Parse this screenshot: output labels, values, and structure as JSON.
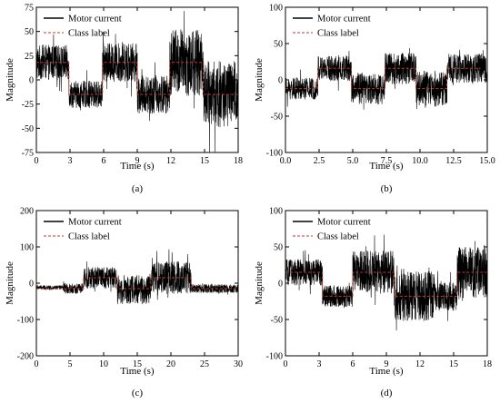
{
  "chart_data": [
    {
      "type": "line",
      "panel_label": "(a)",
      "xlabel": "Time (s)",
      "ylabel": "Magnitude",
      "xlim": [
        0,
        18
      ],
      "ylim": [
        -75,
        75
      ],
      "xticks": [
        0,
        3,
        6,
        9,
        12,
        15,
        18
      ],
      "yticks": [
        -75,
        -50,
        -25,
        0,
        25,
        50,
        75
      ],
      "legend_placement": "top-left",
      "series": [
        {
          "name": "Motor current",
          "color": "#000000",
          "segments": [
            {
              "x_start": 0,
              "x_end": 2.9,
              "mean": 18,
              "amp": 18
            },
            {
              "x_start": 2.9,
              "x_end": 5.9,
              "mean": -15,
              "amp": 14
            },
            {
              "x_start": 5.9,
              "x_end": 9.0,
              "mean": 18,
              "amp": 20
            },
            {
              "x_start": 9.0,
              "x_end": 11.9,
              "mean": -15,
              "amp": 20
            },
            {
              "x_start": 11.9,
              "x_end": 14.9,
              "mean": 18,
              "amp": 35
            },
            {
              "x_start": 14.9,
              "x_end": 18,
              "mean": -15,
              "amp": 35
            }
          ]
        },
        {
          "name": "Class label",
          "color": "#c0392b",
          "steps": [
            {
              "x_start": 0,
              "x_end": 2.9,
              "y": 18
            },
            {
              "x_start": 2.9,
              "x_end": 5.9,
              "y": -15
            },
            {
              "x_start": 5.9,
              "x_end": 9.0,
              "y": 18
            },
            {
              "x_start": 9.0,
              "x_end": 11.9,
              "y": -15
            },
            {
              "x_start": 11.9,
              "x_end": 14.9,
              "y": 18
            },
            {
              "x_start": 14.9,
              "x_end": 18,
              "y": -15
            }
          ]
        }
      ]
    },
    {
      "type": "line",
      "panel_label": "(b)",
      "xlabel": "Time (s)",
      "ylabel": "Magnitude",
      "xlim": [
        0,
        15
      ],
      "ylim": [
        -100,
        100
      ],
      "xticks": [
        0.0,
        2.5,
        5.0,
        7.5,
        10.0,
        12.5,
        15.0
      ],
      "yticks": [
        -100,
        -50,
        0,
        50,
        100
      ],
      "legend_placement": "top-left",
      "series": [
        {
          "name": "Motor current",
          "color": "#000000",
          "segments": [
            {
              "x_start": 0,
              "x_end": 2.4,
              "mean": -12,
              "amp": 15
            },
            {
              "x_start": 2.4,
              "x_end": 4.9,
              "mean": 16,
              "amp": 18
            },
            {
              "x_start": 4.9,
              "x_end": 7.4,
              "mean": -12,
              "amp": 22
            },
            {
              "x_start": 7.4,
              "x_end": 9.7,
              "mean": 16,
              "amp": 22
            },
            {
              "x_start": 9.7,
              "x_end": 12.0,
              "mean": -12,
              "amp": 25
            },
            {
              "x_start": 12.0,
              "x_end": 14.5,
              "mean": 16,
              "amp": 20
            }
          ]
        },
        {
          "name": "Class label",
          "color": "#c0392b",
          "steps": [
            {
              "x_start": 0,
              "x_end": 2.4,
              "y": -12
            },
            {
              "x_start": 2.4,
              "x_end": 4.9,
              "y": 16
            },
            {
              "x_start": 4.9,
              "x_end": 7.4,
              "y": -12
            },
            {
              "x_start": 7.4,
              "x_end": 9.7,
              "y": 16
            },
            {
              "x_start": 9.7,
              "x_end": 12.0,
              "y": -12
            },
            {
              "x_start": 12.0,
              "x_end": 14.5,
              "y": 16
            }
          ]
        }
      ]
    },
    {
      "type": "line",
      "panel_label": "(c)",
      "xlabel": "Time (s)",
      "ylabel": "Magnitude",
      "xlim": [
        0,
        30
      ],
      "ylim": [
        -200,
        200
      ],
      "xticks": [
        0,
        5,
        10,
        15,
        20,
        25,
        30
      ],
      "yticks": [
        -200,
        -100,
        0,
        100,
        200
      ],
      "legend_placement": "top-left",
      "series": [
        {
          "name": "Motor current",
          "color": "#000000",
          "segments": [
            {
              "x_start": 0,
              "x_end": 4.0,
              "mean": -12,
              "amp": 6
            },
            {
              "x_start": 4.0,
              "x_end": 7.0,
              "mean": -15,
              "amp": 14
            },
            {
              "x_start": 7.0,
              "x_end": 12.0,
              "mean": 15,
              "amp": 30
            },
            {
              "x_start": 12.0,
              "x_end": 17.0,
              "mean": -18,
              "amp": 40
            },
            {
              "x_start": 17.0,
              "x_end": 23.0,
              "mean": 15,
              "amp": 45
            },
            {
              "x_start": 23.0,
              "x_end": 30,
              "mean": -15,
              "amp": 12
            }
          ]
        },
        {
          "name": "Class label",
          "color": "#c0392b",
          "steps": [
            {
              "x_start": 0,
              "x_end": 7.0,
              "y": -15
            },
            {
              "x_start": 7.0,
              "x_end": 12.0,
              "y": 15
            },
            {
              "x_start": 12.0,
              "x_end": 17.0,
              "y": -15
            },
            {
              "x_start": 17.0,
              "x_end": 23.0,
              "y": 15
            },
            {
              "x_start": 23.0,
              "x_end": 30,
              "y": -15
            }
          ]
        }
      ]
    },
    {
      "type": "line",
      "panel_label": "(d)",
      "xlabel": "Time (s)",
      "ylabel": "Magnitude",
      "xlim": [
        0,
        18
      ],
      "ylim": [
        -100,
        100
      ],
      "xticks": [
        0,
        3,
        6,
        9,
        12,
        15,
        18
      ],
      "yticks": [
        -100,
        -50,
        0,
        50,
        100
      ],
      "legend_placement": "top-left",
      "series": [
        {
          "name": "Motor current",
          "color": "#000000",
          "segments": [
            {
              "x_start": 0,
              "x_end": 3.3,
              "mean": 15,
              "amp": 18
            },
            {
              "x_start": 3.3,
              "x_end": 6.0,
              "mean": -18,
              "amp": 15
            },
            {
              "x_start": 6.0,
              "x_end": 9.7,
              "mean": 15,
              "amp": 30
            },
            {
              "x_start": 9.7,
              "x_end": 13.3,
              "mean": -18,
              "amp": 35
            },
            {
              "x_start": 13.3,
              "x_end": 15.3,
              "mean": -18,
              "amp": 20
            },
            {
              "x_start": 15.3,
              "x_end": 18,
              "mean": 15,
              "amp": 35
            }
          ]
        },
        {
          "name": "Class label",
          "color": "#c0392b",
          "steps": [
            {
              "x_start": 0,
              "x_end": 3.3,
              "y": 15
            },
            {
              "x_start": 3.3,
              "x_end": 6.0,
              "y": -18
            },
            {
              "x_start": 6.0,
              "x_end": 9.7,
              "y": 15
            },
            {
              "x_start": 9.7,
              "x_end": 15.3,
              "y": -18
            },
            {
              "x_start": 15.3,
              "x_end": 18,
              "y": 15
            }
          ]
        }
      ]
    }
  ]
}
